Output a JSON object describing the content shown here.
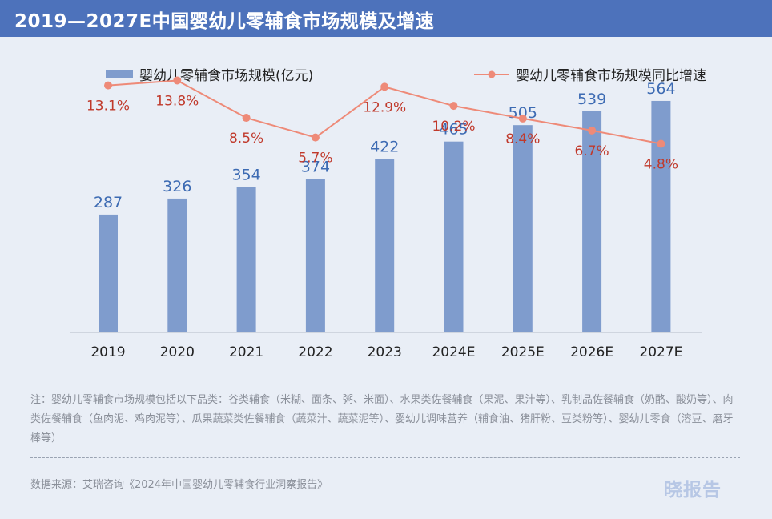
{
  "header": {
    "title": "2019—2027E中国婴幼儿零辅食市场规模及增速"
  },
  "chart_data": {
    "type": "bar+line",
    "title": "2019—2027E中国婴幼儿零辅食市场规模及增速",
    "categories": [
      "2019",
      "2020",
      "2021",
      "2022",
      "2023",
      "2024E",
      "2025E",
      "2026E",
      "2027E"
    ],
    "series": [
      {
        "name": "婴幼儿零辅食市场规模(亿元)",
        "type": "bar",
        "color": "#7f9ccd",
        "label_color": "#3d6bb3",
        "values": [
          287,
          326,
          354,
          374,
          422,
          465,
          505,
          539,
          564
        ],
        "labels": [
          "287",
          "326",
          "354",
          "374",
          "422",
          "465",
          "505",
          "539",
          "564"
        ]
      },
      {
        "name": "婴幼儿零辅食市场规模同比增速",
        "type": "line",
        "color": "#ee8a78",
        "label_color": "#c0392b",
        "values": [
          13.1,
          13.8,
          8.5,
          5.7,
          12.9,
          10.2,
          8.4,
          6.7,
          4.8
        ],
        "labels": [
          "13.1%",
          "13.8%",
          "8.5%",
          "5.7%",
          "12.9%",
          "10.2%",
          "8.4%",
          "6.7%",
          "4.8%"
        ]
      }
    ],
    "ylim_bar": [
      0,
      720
    ],
    "ylim_line": [
      -22,
      20
    ],
    "grid": false,
    "legend": "top"
  },
  "footer": {
    "note": "注：婴幼儿零辅食市场规模包括以下品类：谷类辅食（米糊、面条、粥、米面）、水果类佐餐辅食（果泥、果汁等）、乳制品佐餐辅食（奶酪、酸奶等）、肉类佐餐辅食（鱼肉泥、鸡肉泥等）、瓜果蔬菜类佐餐辅食（蔬菜汁、蔬菜泥等）、婴幼儿调味营养（辅食油、猪肝粉、豆类粉等）、婴幼儿零食（溶豆、磨牙棒等）",
    "source": "数据来源：艾瑞咨询《2024年中国婴幼儿零辅食行业洞察报告》",
    "brand": "晓报告"
  }
}
